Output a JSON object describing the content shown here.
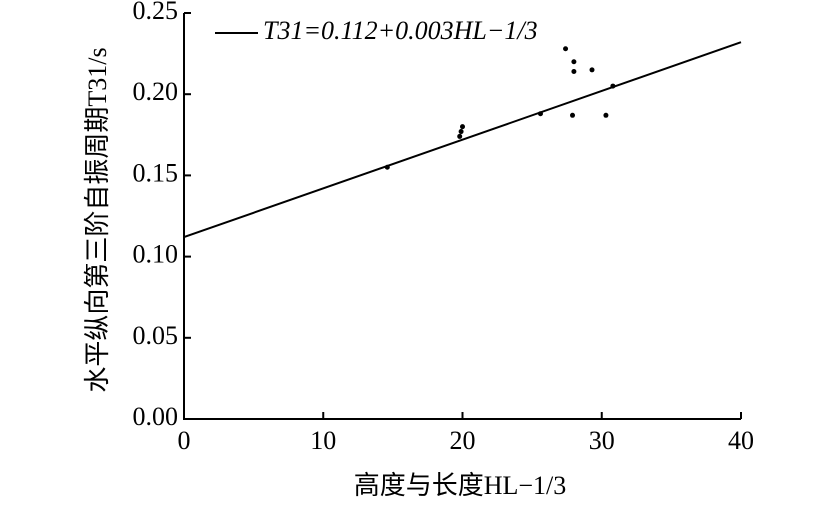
{
  "chart_data": {
    "type": "scatter",
    "x_label": "高度与长度HL−1/3",
    "y_label": "水平纵向第三阶自振周期T31/s",
    "xlim": [
      0,
      40
    ],
    "xticks": [
      0,
      10,
      20,
      30,
      40
    ],
    "ylim": [
      0,
      0.25
    ],
    "yticks": [
      {
        "value": 0,
        "label": "0.00"
      },
      0.05,
      {
        "value": 0.1,
        "label": "0.10"
      },
      0.15,
      {
        "value": 0.2,
        "label": "0.20"
      },
      0.25
    ],
    "legend": "top-left",
    "series": [
      {
        "name": "T31=0.112+0.003HL−1/3",
        "type": "line",
        "color": "#000000",
        "x": [
          0,
          40
        ],
        "values": [
          0.112,
          0.232
        ]
      },
      {
        "type": "scatter",
        "color": "#000000",
        "x": [
          14.6,
          19.8,
          19.9,
          20.0,
          25.6,
          27.4,
          28.0,
          28.0,
          27.9,
          29.3,
          30.3,
          30.8
        ],
        "values": [
          0.155,
          0.174,
          0.177,
          0.18,
          0.188,
          0.228,
          0.22,
          0.214,
          0.187,
          0.215,
          0.187,
          0.205
        ]
      }
    ]
  }
}
